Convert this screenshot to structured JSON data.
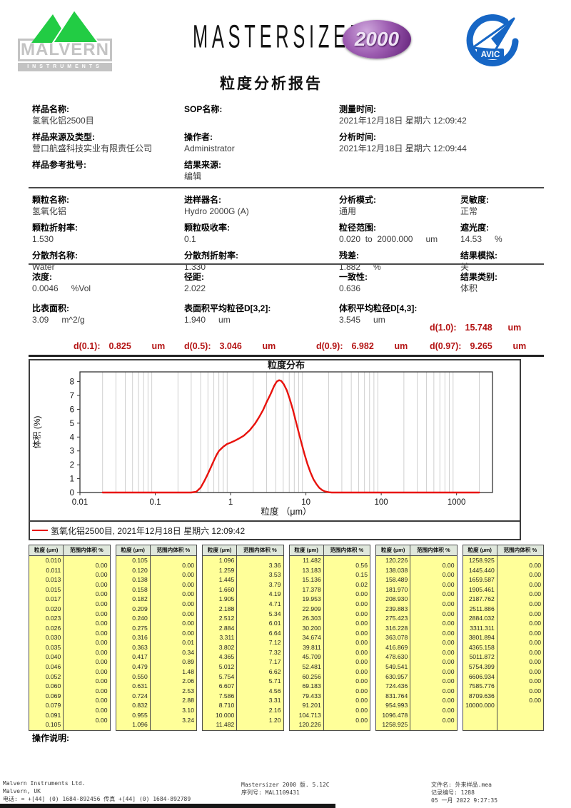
{
  "header": {
    "malvern_logo": {
      "name": "MALVERN",
      "sub": "INSTRUMENTS"
    },
    "mastersizer_logo": {
      "text": "MASTERSIZER",
      "badge": "2000"
    },
    "avic_logo": {
      "label": "AVIC"
    },
    "title": "粒度分析报告"
  },
  "sample_info": {
    "columns": [
      [
        {
          "label": "样品名称:",
          "value": "氢氧化铝2500目"
        },
        {
          "label": "样品来源及类型:",
          "value": "营口航盛科技实业有限责任公司"
        },
        {
          "label": "样品参考批号:",
          "value": ""
        }
      ],
      [
        {
          "label": "SOP名称:",
          "value": ""
        },
        {
          "label": "操作者:",
          "value": "Administrator"
        },
        {
          "label": "结果来源:",
          "value": "编辑"
        }
      ],
      [
        {
          "label": "测量时间:",
          "value": "2021年12月18日 星期六 12:09:42"
        },
        {
          "label": "分析时间:",
          "value": "2021年12月18日 星期六 12:09:44"
        }
      ]
    ]
  },
  "parameters": {
    "columns": [
      [
        {
          "label": "颗粒名称:",
          "value": "氢氧化铝"
        },
        {
          "label": "颗粒折射率:",
          "value": "1.530"
        },
        {
          "label": "分散剂名称:",
          "value": "Water"
        }
      ],
      [
        {
          "label": "进样器名:",
          "value": "Hydro 2000G (A)"
        },
        {
          "label": "颗粒吸收率:",
          "value": "0.1"
        },
        {
          "label": "分散剂折射率:",
          "value": "1.330"
        }
      ],
      [
        {
          "label": "分析模式:",
          "value": "通用"
        },
        {
          "label": "粒径范围:",
          "value": "0.020  to  2000.000",
          "unit": "um"
        },
        {
          "label": "残差:",
          "value": "1.882",
          "unit": "%"
        }
      ],
      [
        {
          "label": "灵敏度:",
          "value": "正常"
        },
        {
          "label": "遮光度:",
          "value": "14.53",
          "unit": "%"
        },
        {
          "label": "结果模拟:",
          "value": "关"
        }
      ]
    ]
  },
  "results": {
    "columns": [
      [
        {
          "label": "浓度:",
          "value": "0.0046",
          "unit": "%Vol"
        },
        {
          "label": "比表面积:",
          "value": "3.09",
          "unit": "m^2/g"
        }
      ],
      [
        {
          "label": "径距:",
          "value": "2.022"
        },
        {
          "label": "表面积平均粒径D[3,2]:",
          "value": "1.940",
          "unit": "um"
        }
      ],
      [
        {
          "label": "一致性:",
          "value": "0.636"
        },
        {
          "label": "体积平均粒径D[4,3]:",
          "value": "3.545",
          "unit": "um"
        }
      ],
      [
        {
          "label": "结果类别:",
          "value": "体积"
        },
        {
          "label": "",
          "value": ""
        }
      ]
    ]
  },
  "d_values": {
    "color": "#b41414",
    "items": [
      {
        "label": "d(0.1):",
        "value": "0.825",
        "unit": "um"
      },
      {
        "label": "d(0.5):",
        "value": "3.046",
        "unit": "um"
      },
      {
        "label": "d(0.9):",
        "value": "6.982",
        "unit": "um"
      },
      {
        "label": "d(0.97):",
        "value": "9.265",
        "unit": "um"
      },
      {
        "label": "d(1.0):",
        "value": "15.748",
        "unit": "um"
      }
    ]
  },
  "chart_data": {
    "type": "line",
    "title": "粒度分布",
    "xlabel": "粒度 （μm）",
    "ylabel": "体积 (%)",
    "x_scale": "log",
    "xlim": [
      0.01,
      3000
    ],
    "ylim": [
      0,
      8.7
    ],
    "yticks": [
      0,
      1,
      2,
      3,
      4,
      5,
      6,
      7,
      8
    ],
    "xticks": [
      0.01,
      0.1,
      1,
      10,
      100,
      1000
    ],
    "grid": "vertical-log-minor",
    "legend": "氢氧化铝2500目, 2021年12月18日 星期六 12:09:42",
    "series": [
      {
        "name": "氢氧化铝2500目",
        "color": "#e8120c",
        "points": [
          [
            0.02,
            0
          ],
          [
            0.3,
            0
          ],
          [
            0.35,
            0.05
          ],
          [
            0.4,
            0.35
          ],
          [
            0.45,
            0.85
          ],
          [
            0.5,
            1.35
          ],
          [
            0.55,
            1.85
          ],
          [
            0.6,
            2.3
          ],
          [
            0.65,
            2.7
          ],
          [
            0.7,
            3.0
          ],
          [
            0.8,
            3.3
          ],
          [
            0.9,
            3.5
          ],
          [
            1.0,
            3.6
          ],
          [
            1.15,
            3.75
          ],
          [
            1.3,
            3.9
          ],
          [
            1.5,
            4.1
          ],
          [
            1.8,
            4.5
          ],
          [
            2.1,
            4.95
          ],
          [
            2.4,
            5.45
          ],
          [
            2.7,
            5.95
          ],
          [
            3.0,
            6.5
          ],
          [
            3.4,
            7.1
          ],
          [
            3.8,
            7.7
          ],
          [
            4.1,
            8.0
          ],
          [
            4.4,
            8.1
          ],
          [
            4.7,
            8.05
          ],
          [
            5.1,
            7.8
          ],
          [
            5.6,
            7.35
          ],
          [
            6.1,
            6.75
          ],
          [
            6.7,
            6.0
          ],
          [
            7.3,
            5.2
          ],
          [
            8.0,
            4.35
          ],
          [
            8.8,
            3.5
          ],
          [
            9.6,
            2.75
          ],
          [
            10.5,
            2.05
          ],
          [
            11.5,
            1.45
          ],
          [
            12.6,
            0.95
          ],
          [
            13.8,
            0.6
          ],
          [
            15.1,
            0.33
          ],
          [
            16.5,
            0.17
          ],
          [
            18,
            0.07
          ],
          [
            20,
            0.02
          ],
          [
            22,
            0
          ],
          [
            2000,
            0
          ]
        ]
      }
    ]
  },
  "tables": {
    "size_header": "粒度 (µm)",
    "value_header": "范围内体积 %",
    "cell_color": "#ffff99",
    "columns": [
      {
        "sizes": [
          "0.010",
          "0.011",
          "0.013",
          "0.015",
          "0.017",
          "0.020",
          "0.023",
          "0.026",
          "0.030",
          "0.035",
          "0.040",
          "0.046",
          "0.052",
          "0.060",
          "0.069",
          "0.079",
          "0.091",
          "0.105"
        ],
        "values": [
          "0.00",
          "0.00",
          "0.00",
          "0.00",
          "0.00",
          "0.00",
          "0.00",
          "0.00",
          "0.00",
          "0.00",
          "0.00",
          "0.00",
          "0.00",
          "0.00",
          "0.00",
          "0.00",
          "0.00"
        ]
      },
      {
        "sizes": [
          "0.105",
          "0.120",
          "0.138",
          "0.158",
          "0.182",
          "0.209",
          "0.240",
          "0.275",
          "0.316",
          "0.363",
          "0.417",
          "0.479",
          "0.550",
          "0.631",
          "0.724",
          "0.832",
          "0.955",
          "1.096"
        ],
        "values": [
          "0.00",
          "0.00",
          "0.00",
          "0.00",
          "0.00",
          "0.00",
          "0.00",
          "0.00",
          "0.01",
          "0.34",
          "0.89",
          "1.48",
          "2.06",
          "2.53",
          "2.88",
          "3.10",
          "3.24"
        ]
      },
      {
        "sizes": [
          "1.096",
          "1.259",
          "1.445",
          "1.660",
          "1.905",
          "2.188",
          "2.512",
          "2.884",
          "3.311",
          "3.802",
          "4.365",
          "5.012",
          "5.754",
          "6.607",
          "7.586",
          "8.710",
          "10.000",
          "11.482"
        ],
        "values": [
          "3.36",
          "3.53",
          "3.79",
          "4.19",
          "4.71",
          "5.34",
          "6.01",
          "6.64",
          "7.12",
          "7.32",
          "7.17",
          "6.62",
          "5.71",
          "4.56",
          "3.31",
          "2.16",
          "1.20"
        ]
      },
      {
        "sizes": [
          "11.482",
          "13.183",
          "15.136",
          "17.378",
          "19.953",
          "22.909",
          "26.303",
          "30.200",
          "34.674",
          "39.811",
          "45.709",
          "52.481",
          "60.256",
          "69.183",
          "79.433",
          "91.201",
          "104.713",
          "120.226"
        ],
        "values": [
          "0.56",
          "0.15",
          "0.02",
          "0.00",
          "0.00",
          "0.00",
          "0.00",
          "0.00",
          "0.00",
          "0.00",
          "0.00",
          "0.00",
          "0.00",
          "0.00",
          "0.00",
          "0.00",
          "0.00"
        ]
      },
      {
        "sizes": [
          "120.226",
          "138.038",
          "158.489",
          "181.970",
          "208.930",
          "239.883",
          "275.423",
          "316.228",
          "363.078",
          "416.869",
          "478.630",
          "549.541",
          "630.957",
          "724.436",
          "831.764",
          "954.993",
          "1096.478",
          "1258.925"
        ],
        "values": [
          "0.00",
          "0.00",
          "0.00",
          "0.00",
          "0.00",
          "0.00",
          "0.00",
          "0.00",
          "0.00",
          "0.00",
          "0.00",
          "0.00",
          "0.00",
          "0.00",
          "0.00",
          "0.00",
          "0.00"
        ]
      },
      {
        "sizes": [
          "1258.925",
          "1445.440",
          "1659.587",
          "1905.461",
          "2187.762",
          "2511.886",
          "2884.032",
          "3311.311",
          "3801.894",
          "4365.158",
          "5011.872",
          "5754.399",
          "6606.934",
          "7585.776",
          "8709.636",
          "10000.000"
        ],
        "values": [
          "0.00",
          "0.00",
          "0.00",
          "0.00",
          "0.00",
          "0.00",
          "0.00",
          "0.00",
          "0.00",
          "0.00",
          "0.00",
          "0.00",
          "0.00",
          "0.00",
          "0.00"
        ]
      }
    ]
  },
  "notes": {
    "label": "操作说明:"
  },
  "footer": {
    "left": [
      "Malvern Instruments Ltd.",
      "Malvern, UK",
      "电话: = +[44] (0) 1684-892456 传真 +[44] (0) 1684-892789"
    ],
    "center": [
      "Mastersizer 2000 版. 5.12C",
      "序列号: MAL1109431"
    ],
    "right": [
      "文件名:  外来样品.mea",
      "记录编号:  1288",
      "05 一月 2022 9:27:35"
    ]
  }
}
